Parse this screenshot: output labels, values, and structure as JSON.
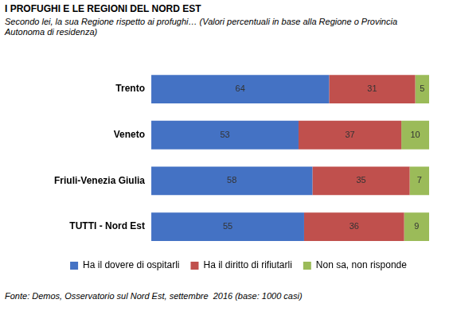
{
  "chart_data": {
    "type": "bar",
    "title": "I PROFUGHI E LE REGIONI DEL NORD EST",
    "subtitle": "Secondo lei, la sua Regione rispetto ai profughi… (Valori percentuali in base alla Regione o Provincia Autonoma di residenza)",
    "source": "Fonte: Demos, Osservatorio sul Nord Est, settembre  2016 (base: 1000 casi)",
    "categories": [
      "Trento",
      "Veneto",
      "Friuli-Venezia Giulia",
      "TUTTI - Nord Est"
    ],
    "series": [
      {
        "name": "Ha il dovere di ospitarli",
        "color": "#4472c4",
        "values": [
          64,
          53,
          58,
          55
        ]
      },
      {
        "name": "Ha il diritto di rifiutarli",
        "color": "#c0504d",
        "values": [
          31,
          37,
          35,
          36
        ]
      },
      {
        "name": "Non sa, non risponde",
        "color": "#9bbb59",
        "values": [
          5,
          10,
          7,
          9
        ]
      }
    ],
    "xlim": [
      0,
      100
    ],
    "orientation": "horizontal",
    "stacked": true,
    "data_labels": true,
    "legend": "bottom",
    "tick_labels": "y",
    "grid": false
  }
}
